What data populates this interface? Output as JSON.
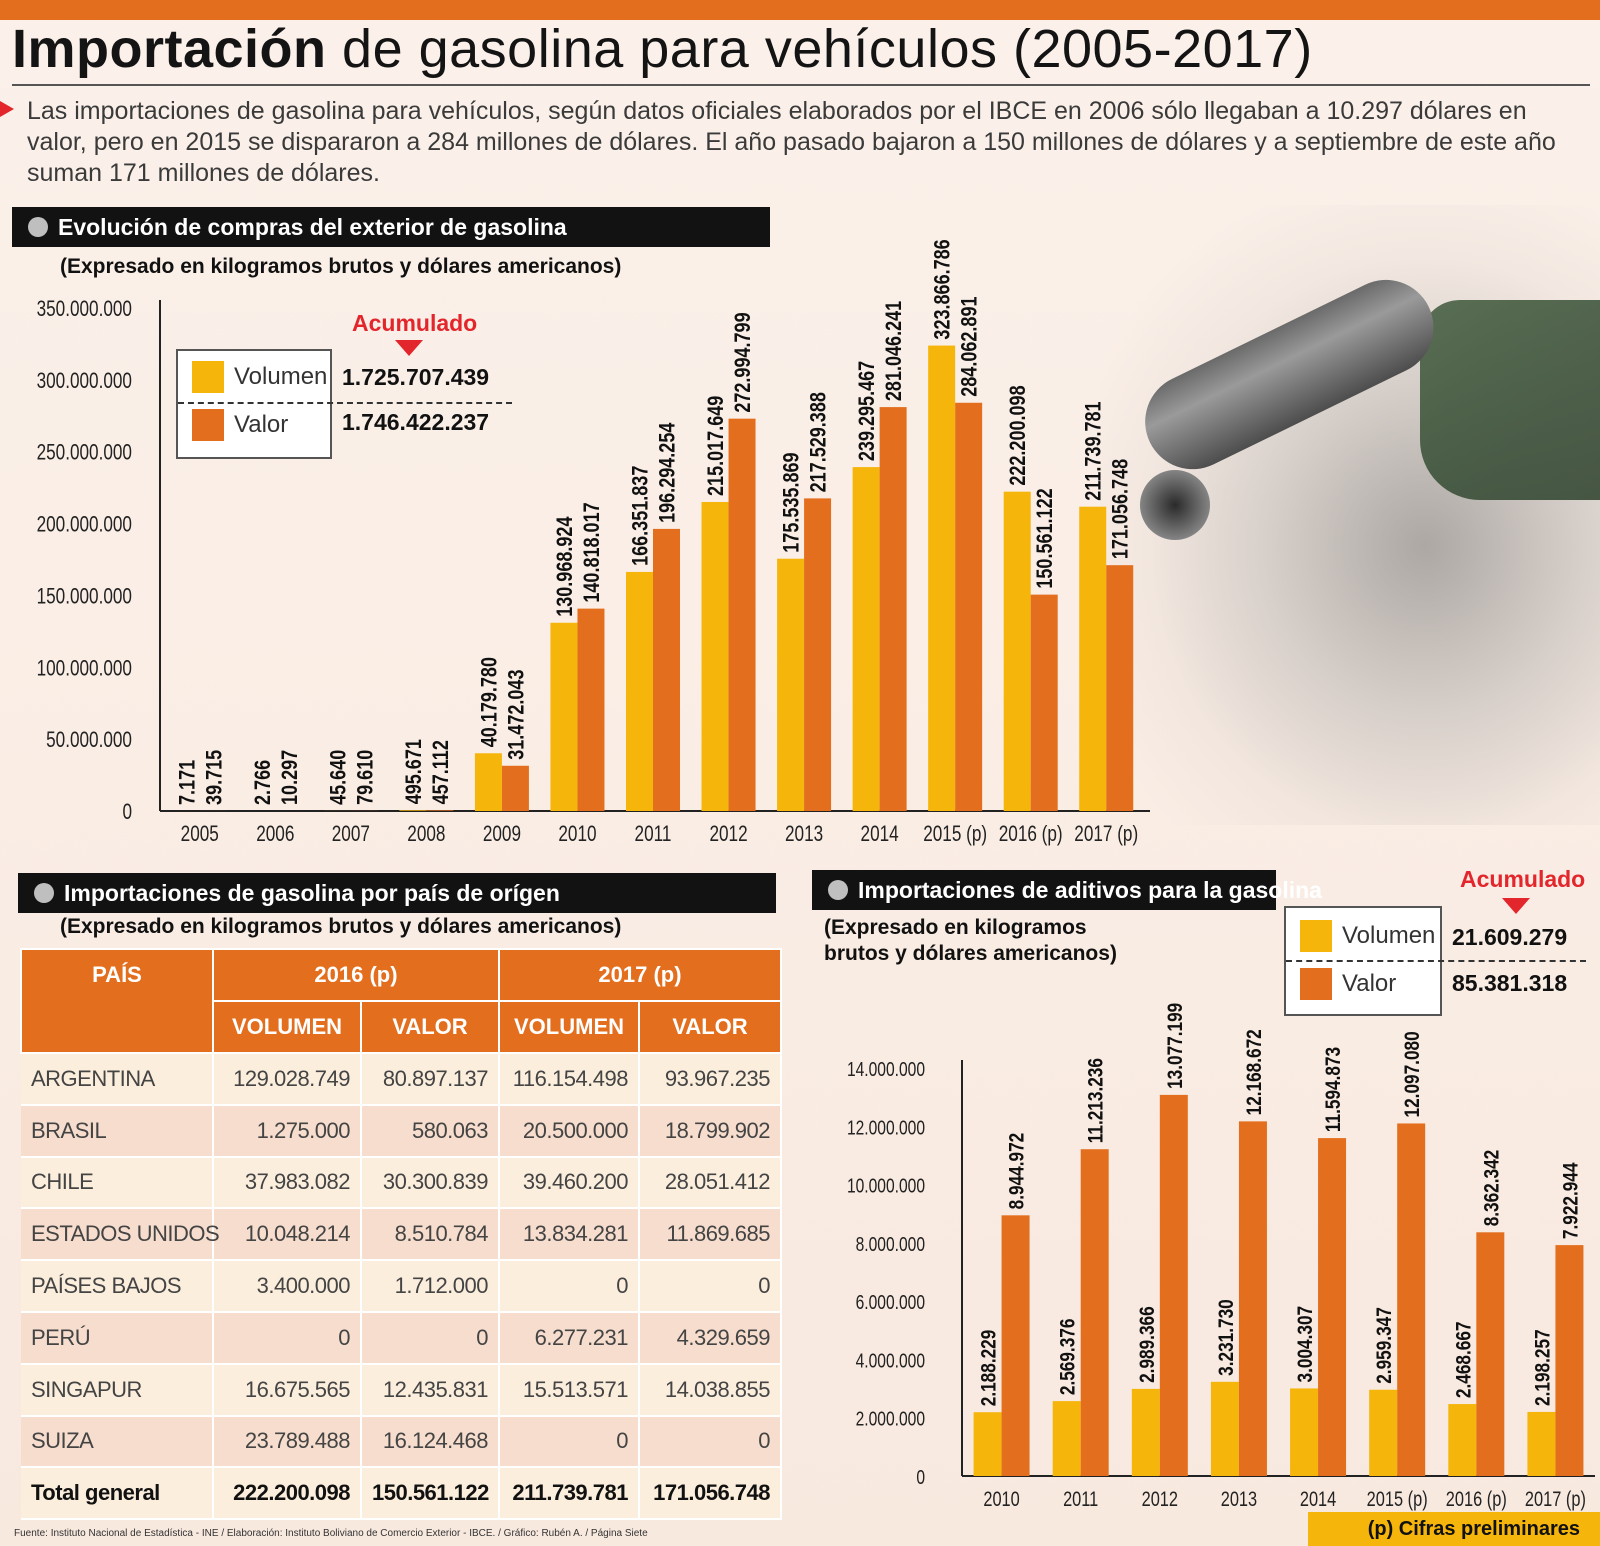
{
  "title_bold": "Importación",
  "title_rest": " de gasolina para vehículos (2005-2017)",
  "intro": "Las importaciones de gasolina para vehículos, según datos oficiales elaborados por el IBCE en 2006 sólo llegaban a 10.297 dólares en valor, pero en 2015 se dispararon a 284 millones de dólares. El año pasado bajaron a 150 millones de dólares y a septiembre de este año suman 171 millones de dólares.",
  "colors": {
    "volumen": "#f6b50a",
    "valor": "#e36f1e",
    "accent": "#e3262c"
  },
  "chart1": {
    "section_title": "Evolución de compras del  exterior de gasolina",
    "subtitle": "(Expresado en kilogramos brutos y dólares americanos)",
    "acumulado_label": "Acumulado",
    "legend": {
      "volumen_label": "Volumen",
      "valor_label": "Valor",
      "volumen_total": "1.725.707.439",
      "valor_total": "1.746.422.237"
    }
  },
  "chart3": {
    "section_title": "Importaciones de aditivos para la gasolina",
    "subtitle_line1": "(Expresado en kilogramos",
    "subtitle_line2": "brutos y dólares americanos)",
    "acumulado_label": "Acumulado",
    "legend": {
      "volumen_label": "Volumen",
      "valor_label": "Valor",
      "volumen_total": "21.609.279",
      "valor_total": "85.381.318"
    }
  },
  "chart_data": [
    {
      "type": "bar",
      "title": "Evolución de compras del  exterior de gasolina",
      "categories": [
        "2005",
        "2006",
        "2007",
        "2008",
        "2009",
        "2010",
        "2011",
        "2012",
        "2013",
        "2014",
        "2015 (p)",
        "2016 (p)",
        "2017 (p)"
      ],
      "series": [
        {
          "name": "Volumen",
          "values": [
            7171,
            2766,
            45640,
            495671,
            40179780,
            130968924,
            166351837,
            215017649,
            175535869,
            239295467,
            323866786,
            222200098,
            211739781
          ],
          "labels": [
            "7.171",
            "2.766",
            "45.640",
            "495.671",
            "40.179.780",
            "130.968.924",
            "166.351.837",
            "215.017.649",
            "175.535.869",
            "239.295.467",
            "323.866.786",
            "222.200.098",
            "211.739.781"
          ]
        },
        {
          "name": "Valor",
          "values": [
            39715,
            10297,
            79610,
            457112,
            31472043,
            140818017,
            196294254,
            272994799,
            217529388,
            281046241,
            284062891,
            150561122,
            171056748
          ],
          "labels": [
            "39.715",
            "10.297",
            "79.610",
            "457.112",
            "31.472.043",
            "140.818.017",
            "196.294.254",
            "272.994.799",
            "217.529.388",
            "281.046.241",
            "284.062.891",
            "150.561.122",
            "171.056.748"
          ]
        }
      ],
      "yticks": [
        "0",
        "50.000.000",
        "100.000.000",
        "150.000.000",
        "200.000.000",
        "250.000.000",
        "300.000.000",
        "350.000.000"
      ],
      "ylim": [
        0,
        350000000
      ],
      "grid": false,
      "legend": "top-left"
    },
    {
      "type": "table",
      "title": "Importaciones de gasolina por país de orígen",
      "subtitle": "(Expresado en kilogramos brutos y dólares americanos)",
      "header_pais": "PAÍS",
      "header_years": [
        "2016 (p)",
        "2017 (p)"
      ],
      "header_cols": [
        "VOLUMEN",
        "VALOR",
        "VOLUMEN",
        "VALOR"
      ],
      "rows": [
        [
          "ARGENTINA",
          "129.028.749",
          "80.897.137",
          "116.154.498",
          "93.967.235"
        ],
        [
          "BRASIL",
          "1.275.000",
          "580.063",
          "20.500.000",
          "18.799.902"
        ],
        [
          "CHILE",
          "37.983.082",
          "30.300.839",
          "39.460.200",
          "28.051.412"
        ],
        [
          "ESTADOS UNIDOS",
          "10.048.214",
          "8.510.784",
          "13.834.281",
          "11.869.685"
        ],
        [
          "PAÍSES BAJOS",
          "3.400.000",
          "1.712.000",
          "0",
          "0"
        ],
        [
          "PERÚ",
          "0",
          "0",
          "6.277.231",
          "4.329.659"
        ],
        [
          "SINGAPUR",
          "16.675.565",
          "12.435.831",
          "15.513.571",
          "14.038.855"
        ],
        [
          "SUIZA",
          "23.789.488",
          "16.124.468",
          "0",
          "0"
        ]
      ],
      "total": [
        "Total general",
        "222.200.098",
        "150.561.122",
        "211.739.781",
        "171.056.748"
      ]
    },
    {
      "type": "bar",
      "title": "Importaciones de aditivos para la gasolina",
      "categories": [
        "2010",
        "2011",
        "2012",
        "2013",
        "2014",
        "2015 (p)",
        "2016 (p)",
        "2017 (p)"
      ],
      "series": [
        {
          "name": "Volumen",
          "values": [
            2188229,
            2569376,
            2989366,
            3231730,
            3004307,
            2959347,
            2468667,
            2198257
          ],
          "labels": [
            "2.188.229",
            "2.569.376",
            "2.989.366",
            "3.231.730",
            "3.004.307",
            "2.959.347",
            "2.468.667",
            "2.198.257"
          ]
        },
        {
          "name": "Valor",
          "values": [
            8944972,
            11213236,
            13077199,
            12168672,
            11594873,
            12097080,
            8362342,
            7922944
          ],
          "labels": [
            "8.944.972",
            "11.213.236",
            "13.077.199",
            "12.168.672",
            "11.594.873",
            "12.097.080",
            "8.362.342",
            "7.922.944"
          ]
        }
      ],
      "yticks": [
        "0",
        "2.000.000",
        "4.000.000",
        "6.000.000",
        "8.000.000",
        "10.000.000",
        "12.000.000",
        "14.000.000"
      ],
      "ylim": [
        0,
        14000000
      ],
      "grid": false,
      "legend": "top-right"
    }
  ],
  "footer": "Fuente: Instituto Nacional de Estadística - INE / Elaboración: Instituto Boliviano de Comercio Exterior - IBCE. / Gráfico: Rubén A. / Página Siete",
  "prelim_note": "(p) Cifras preliminares"
}
